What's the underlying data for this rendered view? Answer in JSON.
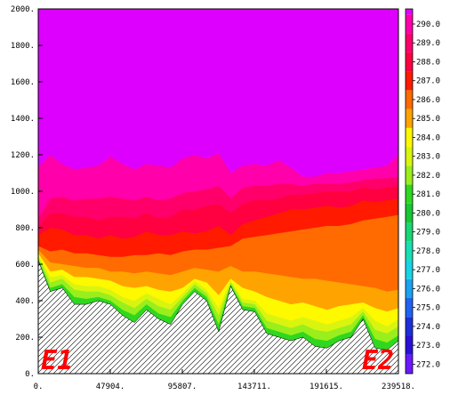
{
  "chart_data": {
    "type": "area",
    "title": "",
    "xlabel": "",
    "ylabel": "",
    "xlim": [
      0,
      239518
    ],
    "ylim": [
      0,
      2000
    ],
    "x_ticks": [
      {
        "value": 0,
        "label": "0."
      },
      {
        "value": 47904,
        "label": "47904."
      },
      {
        "value": 95807,
        "label": "95807."
      },
      {
        "value": 143711,
        "label": "143711."
      },
      {
        "value": 191615,
        "label": "191615."
      },
      {
        "value": 239518,
        "label": "239518."
      }
    ],
    "y_ticks": [
      {
        "value": 0,
        "label": "0."
      },
      {
        "value": 200,
        "label": "200."
      },
      {
        "value": 400,
        "label": "400."
      },
      {
        "value": 600,
        "label": "600."
      },
      {
        "value": 800,
        "label": "800."
      },
      {
        "value": 1000,
        "label": "1000."
      },
      {
        "value": 1200,
        "label": "1200."
      },
      {
        "value": 1400,
        "label": "1400."
      },
      {
        "value": 1600,
        "label": "1600."
      },
      {
        "value": 1800,
        "label": "1800."
      },
      {
        "value": 2000,
        "label": "2000."
      }
    ],
    "colorbar": {
      "range": [
        271.5,
        290.8
      ],
      "placement": "right",
      "labels": [
        "272.0",
        "273.0",
        "274.0",
        "275.0",
        "276.0",
        "277.0",
        "278.0",
        "279.0",
        "280.0",
        "281.0",
        "282.0",
        "283.0",
        "284.0",
        "285.0",
        "286.0",
        "287.0",
        "288.0",
        "289.0",
        "290.0"
      ],
      "bands": [
        {
          "from": 271.5,
          "to": 272.5,
          "color": "#6b19ff"
        },
        {
          "from": 272.5,
          "to": 273.5,
          "color": "#2b10d8"
        },
        {
          "from": 273.5,
          "to": 274.5,
          "color": "#1e2ed8"
        },
        {
          "from": 274.5,
          "to": 275.5,
          "color": "#1e63f0"
        },
        {
          "from": 275.5,
          "to": 276.5,
          "color": "#1aa3f0"
        },
        {
          "from": 276.5,
          "to": 277.5,
          "color": "#19d4e6"
        },
        {
          "from": 277.5,
          "to": 278.5,
          "color": "#19e0b4"
        },
        {
          "from": 278.5,
          "to": 279.5,
          "color": "#19d773"
        },
        {
          "from": 279.5,
          "to": 280.5,
          "color": "#17c832"
        },
        {
          "from": 280.5,
          "to": 281.5,
          "color": "#2fd81e"
        },
        {
          "from": 281.5,
          "to": 282.5,
          "color": "#9aee1c"
        },
        {
          "from": 282.5,
          "to": 283.5,
          "color": "#d9f50f"
        },
        {
          "from": 283.5,
          "to": 284.5,
          "color": "#fff900"
        },
        {
          "from": 284.5,
          "to": 285.5,
          "color": "#ffa300"
        },
        {
          "from": 285.5,
          "to": 286.5,
          "color": "#ff6b00"
        },
        {
          "from": 286.5,
          "to": 287.5,
          "color": "#ff1a00"
        },
        {
          "from": 287.5,
          "to": 288.5,
          "color": "#ff0040"
        },
        {
          "from": 288.5,
          "to": 289.5,
          "color": "#ff006a"
        },
        {
          "from": 289.5,
          "to": 290.5,
          "color": "#ff00aa"
        },
        {
          "from": 290.5,
          "to": 290.8,
          "color": "#dd00ff"
        }
      ]
    },
    "x": [
      0,
      8000,
      16000,
      24000,
      32000,
      40000,
      48000,
      56000,
      64000,
      72000,
      80000,
      88000,
      96000,
      104000,
      112000,
      120000,
      128000,
      136000,
      144000,
      152000,
      160000,
      168000,
      176000,
      184000,
      192000,
      200000,
      208000,
      216000,
      224000,
      232000,
      239518
    ],
    "terrain": [
      620,
      450,
      470,
      380,
      380,
      400,
      380,
      320,
      280,
      350,
      300,
      270,
      380,
      450,
      400,
      230,
      480,
      350,
      340,
      220,
      200,
      180,
      200,
      150,
      140,
      180,
      200,
      300,
      140,
      130,
      180
    ],
    "bands": [
      {
        "value_range": [
          280.5,
          281.5
        ],
        "color": "#2fd81e",
        "top": [
          630,
          470,
          490,
          420,
          410,
          420,
          400,
          350,
          320,
          380,
          330,
          310,
          400,
          470,
          420,
          270,
          490,
          370,
          360,
          250,
          230,
          210,
          230,
          190,
          180,
          210,
          230,
          320,
          190,
          170,
          210
        ]
      },
      {
        "value_range": [
          281.5,
          282.5
        ],
        "color": "#9aee1c",
        "top": [
          640,
          500,
          520,
          460,
          450,
          450,
          430,
          390,
          360,
          410,
          370,
          350,
          420,
          490,
          440,
          320,
          500,
          390,
          380,
          290,
          270,
          250,
          270,
          240,
          230,
          250,
          270,
          340,
          240,
          220,
          260
        ]
      },
      {
        "value_range": [
          282.5,
          283.5
        ],
        "color": "#d9f50f",
        "top": [
          650,
          530,
          540,
          490,
          480,
          480,
          460,
          420,
          400,
          440,
          410,
          380,
          440,
          510,
          460,
          360,
          510,
          410,
          400,
          330,
          310,
          290,
          310,
          290,
          270,
          290,
          310,
          360,
          290,
          260,
          300
        ]
      },
      {
        "value_range": [
          283.5,
          284.5
        ],
        "color": "#fff900",
        "top": [
          660,
          560,
          570,
          530,
          530,
          520,
          510,
          480,
          470,
          480,
          460,
          450,
          470,
          520,
          500,
          430,
          520,
          470,
          450,
          420,
          400,
          380,
          390,
          370,
          350,
          370,
          380,
          390,
          360,
          340,
          360
        ]
      },
      {
        "value_range": [
          284.5,
          285.5
        ],
        "color": "#ffa300",
        "top": [
          680,
          610,
          600,
          590,
          580,
          580,
          560,
          560,
          550,
          560,
          550,
          540,
          560,
          580,
          570,
          560,
          590,
          560,
          560,
          550,
          540,
          530,
          520,
          520,
          510,
          500,
          490,
          480,
          470,
          450,
          460
        ]
      },
      {
        "value_range": [
          285.5,
          286.5
        ],
        "color": "#ff6b00",
        "top": [
          700,
          670,
          680,
          660,
          660,
          650,
          640,
          640,
          650,
          650,
          660,
          650,
          670,
          680,
          680,
          690,
          700,
          740,
          750,
          760,
          770,
          780,
          790,
          800,
          810,
          810,
          820,
          840,
          850,
          860,
          870
        ]
      },
      {
        "value_range": [
          286.5,
          287.5
        ],
        "color": "#ff1a00",
        "top": [
          760,
          800,
          790,
          760,
          760,
          740,
          760,
          740,
          750,
          780,
          760,
          760,
          780,
          770,
          780,
          810,
          760,
          820,
          840,
          860,
          880,
          900,
          900,
          910,
          920,
          910,
          920,
          950,
          940,
          950,
          960
        ]
      },
      {
        "value_range": [
          287.5,
          288.5
        ],
        "color": "#ff0040",
        "top": [
          800,
          880,
          880,
          860,
          860,
          840,
          860,
          860,
          850,
          880,
          850,
          860,
          900,
          900,
          920,
          930,
          880,
          930,
          950,
          950,
          960,
          980,
          980,
          990,
          1000,
          1000,
          1000,
          1020,
          1010,
          1020,
          1030
        ]
      },
      {
        "value_range": [
          288.5,
          289.5
        ],
        "color": "#ff006a",
        "top": [
          850,
          960,
          970,
          950,
          960,
          960,
          970,
          960,
          950,
          970,
          950,
          960,
          990,
          1000,
          1010,
          1030,
          960,
          1020,
          1030,
          1030,
          1040,
          1040,
          1030,
          1040,
          1040,
          1040,
          1050,
          1060,
          1070,
          1070,
          1080
        ]
      },
      {
        "value_range": [
          289.5,
          290.5
        ],
        "color": "#ff00aa",
        "top": [
          1130,
          1200,
          1150,
          1120,
          1130,
          1140,
          1190,
          1150,
          1120,
          1150,
          1140,
          1130,
          1180,
          1200,
          1180,
          1210,
          1100,
          1140,
          1150,
          1140,
          1170,
          1130,
          1080,
          1080,
          1100,
          1100,
          1110,
          1120,
          1130,
          1140,
          1200
        ]
      },
      {
        "value_range": [
          290.5,
          290.8
        ],
        "color": "#dd00ff",
        "top": [
          2000,
          2000,
          2000,
          2000,
          2000,
          2000,
          2000,
          2000,
          2000,
          2000,
          2000,
          2000,
          2000,
          2000,
          2000,
          2000,
          2000,
          2000,
          2000,
          2000,
          2000,
          2000,
          2000,
          2000,
          2000,
          2000,
          2000,
          2000,
          2000,
          2000,
          2000
        ]
      }
    ],
    "annotations": [
      {
        "text": "E1",
        "position": "bottom-left",
        "color": "#ff0000"
      },
      {
        "text": "E2",
        "position": "bottom-right",
        "color": "#ff0000"
      }
    ],
    "grid": false
  }
}
